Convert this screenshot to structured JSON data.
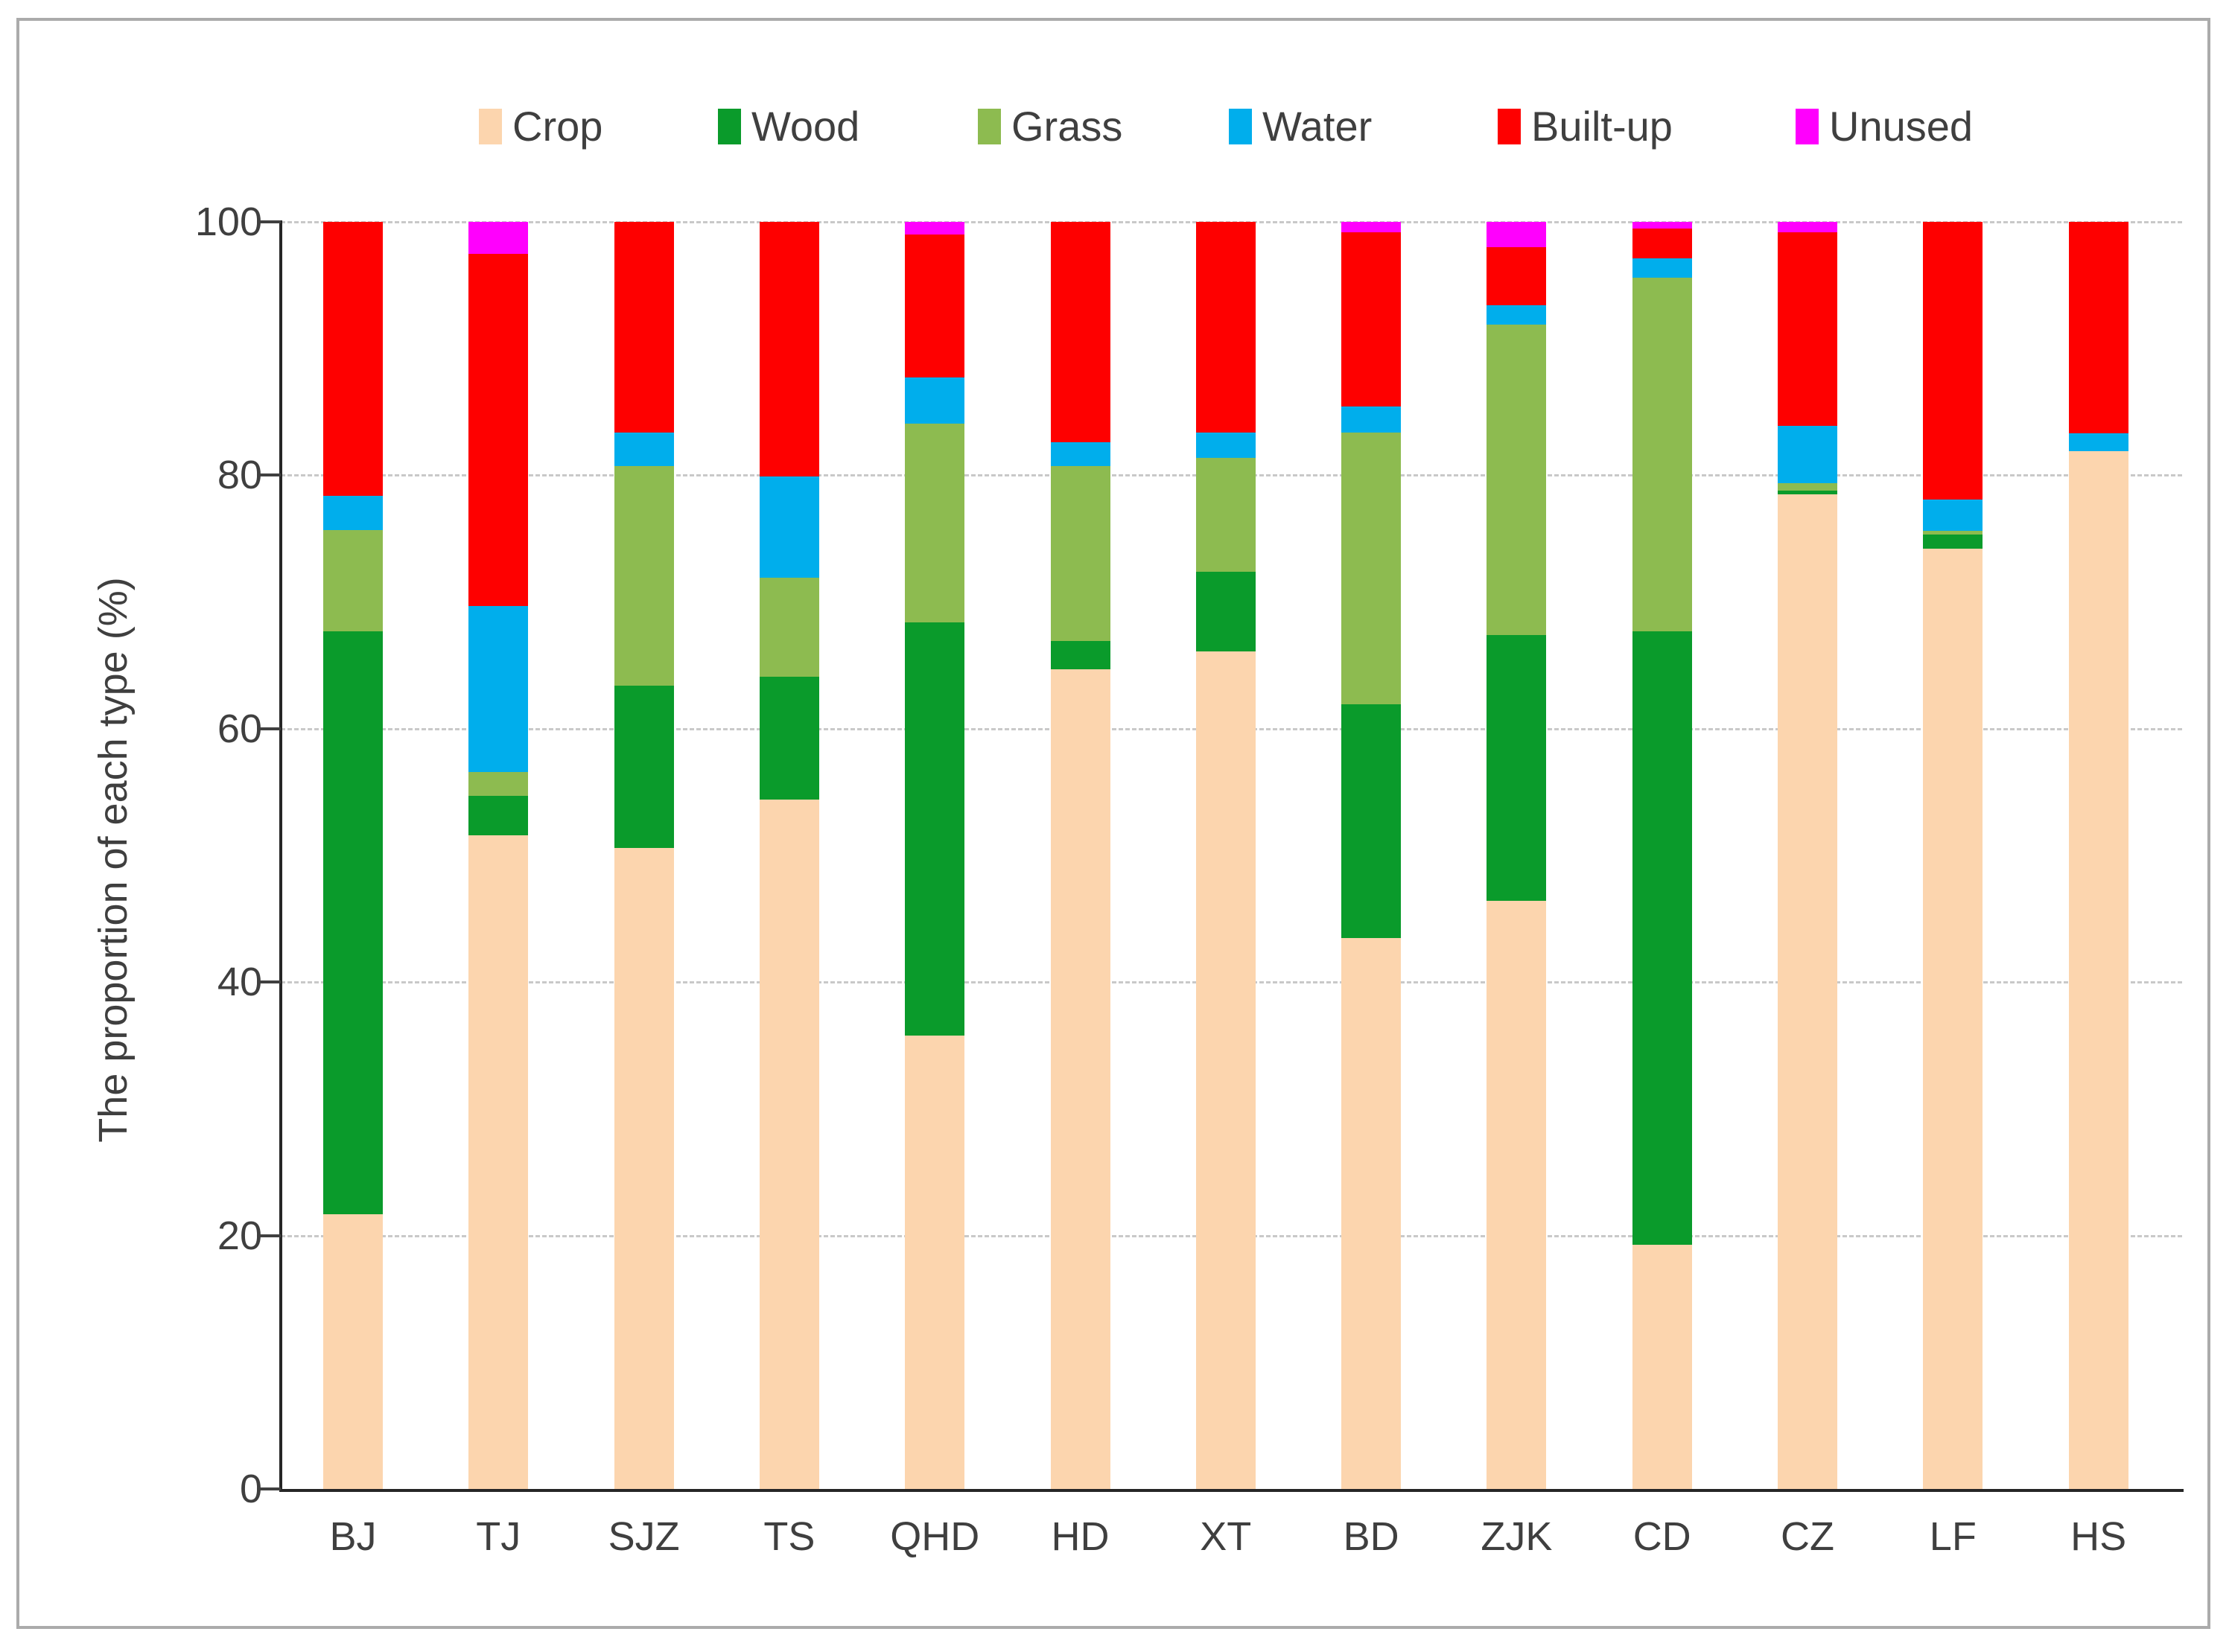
{
  "chart_data": {
    "type": "bar",
    "stacked": true,
    "title": "",
    "xlabel": "",
    "ylabel": "The proportion of each type (%)",
    "ylim": [
      0,
      100
    ],
    "yticks": [
      0,
      20,
      40,
      60,
      80,
      100
    ],
    "grid": "horizontal-dashed",
    "legend_position": "top",
    "categories": [
      "BJ",
      "TJ",
      "SJZ",
      "TS",
      "QHD",
      "HD",
      "XT",
      "BD",
      "ZJK",
      "CD",
      "CZ",
      "LF",
      "HS"
    ],
    "series": [
      {
        "name": "Crop",
        "color": "#fcd5ae",
        "values": [
          21.7,
          51.6,
          50.6,
          54.4,
          35.8,
          64.7,
          66.1,
          43.5,
          46.4,
          19.3,
          78.5,
          74.2,
          81.9
        ]
      },
      {
        "name": "Wood",
        "color": "#0a9b2b",
        "values": [
          46.0,
          3.1,
          12.8,
          9.7,
          32.6,
          2.2,
          6.3,
          18.4,
          21.0,
          48.4,
          0.3,
          1.1,
          0
        ]
      },
      {
        "name": "Grass",
        "color": "#8dbb50",
        "values": [
          8.0,
          1.9,
          17.3,
          7.8,
          15.7,
          13.8,
          9.0,
          21.5,
          24.5,
          27.9,
          0.6,
          0.3,
          0
        ]
      },
      {
        "name": "Water",
        "color": "#00aeec",
        "values": [
          2.7,
          13.1,
          2.7,
          8.0,
          3.6,
          1.9,
          2.0,
          2.0,
          1.5,
          1.5,
          4.5,
          2.5,
          1.4
        ]
      },
      {
        "name": "Built-up",
        "color": "#fe0000",
        "values": [
          21.6,
          27.8,
          16.6,
          20.1,
          11.3,
          17.4,
          16.6,
          13.8,
          4.6,
          2.4,
          15.3,
          21.9,
          16.7
        ]
      },
      {
        "name": "Unused",
        "color": "#ff00fd",
        "values": [
          0,
          2.5,
          0,
          0,
          1.0,
          0,
          0,
          0.8,
          2.0,
          0.5,
          0.8,
          0,
          0
        ]
      }
    ]
  }
}
